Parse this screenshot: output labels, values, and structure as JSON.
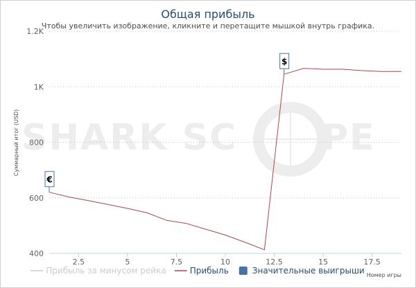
{
  "chart_data": {
    "type": "line",
    "title": "Общая прибыль",
    "subtitle": "Чтобы увеличить изображение, кликните и перетащите мышкой внутрь графика.",
    "ylabel": "Суммарный итог (USD)",
    "xlabel": "Номер игры",
    "xlim": [
      1,
      19
    ],
    "ylim": [
      400,
      1200
    ],
    "x_ticks": [
      {
        "value": 2.5,
        "label": "2.5"
      },
      {
        "value": 5,
        "label": "5"
      },
      {
        "value": 7.5,
        "label": "7.5"
      },
      {
        "value": 10,
        "label": "10"
      },
      {
        "value": 12.5,
        "label": "12.5"
      },
      {
        "value": 15,
        "label": "15"
      },
      {
        "value": 17.5,
        "label": "17.5"
      }
    ],
    "y_ticks": [
      {
        "value": 400,
        "label": "400"
      },
      {
        "value": 600,
        "label": "600"
      },
      {
        "value": 800,
        "label": "800"
      },
      {
        "value": 1000,
        "label": "1K"
      },
      {
        "value": 1200,
        "label": "1.2K"
      }
    ],
    "grid": true,
    "series": [
      {
        "name": "Прибыль",
        "color": "#aa4643",
        "x": [
          1,
          2,
          3,
          4,
          5,
          6,
          7,
          8,
          9,
          10,
          11,
          12,
          13,
          14,
          15,
          16,
          17,
          18,
          19
        ],
        "y": [
          620,
          603,
          590,
          576,
          562,
          546,
          519,
          508,
          487,
          466,
          440,
          413,
          1045,
          1066,
          1063,
          1063,
          1058,
          1055,
          1055
        ]
      }
    ],
    "legend": {
      "placement": "bottom",
      "items": [
        {
          "label": "Прибыль за минусом рейка",
          "color": "#cccccc",
          "symbol": "line"
        },
        {
          "label": "Прибыль",
          "color": "#aa4643",
          "symbol": "line"
        },
        {
          "label": "Значительные выигрыши",
          "color": "#4572a7",
          "symbol": "square"
        }
      ]
    },
    "flags": [
      {
        "x": 1,
        "y": 620,
        "text": "€"
      },
      {
        "x": 13,
        "y": 1045,
        "text": "$"
      }
    ],
    "watermark": {
      "left": "SHARK SC",
      "right": "PE"
    }
  }
}
